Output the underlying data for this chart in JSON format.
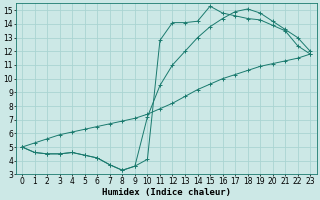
{
  "xlabel": "Humidex (Indice chaleur)",
  "xlim": [
    -0.5,
    23.5
  ],
  "ylim": [
    3,
    15.5
  ],
  "xticks": [
    0,
    1,
    2,
    3,
    4,
    5,
    6,
    7,
    8,
    9,
    10,
    11,
    12,
    13,
    14,
    15,
    16,
    17,
    18,
    19,
    20,
    21,
    22,
    23
  ],
  "yticks": [
    3,
    4,
    5,
    6,
    7,
    8,
    9,
    10,
    11,
    12,
    13,
    14,
    15
  ],
  "bg_color": "#cce8e6",
  "grid_color": "#aad4d2",
  "line_color": "#1a7a6e",
  "line1_x": [
    0,
    1,
    2,
    3,
    4,
    5,
    6,
    7,
    8,
    9,
    10,
    11,
    12,
    13,
    14,
    15,
    16,
    17,
    18,
    19,
    20,
    21,
    22,
    23
  ],
  "line1_y": [
    5.0,
    4.6,
    4.5,
    4.5,
    4.6,
    4.4,
    4.2,
    3.7,
    3.3,
    3.6,
    4.1,
    12.8,
    14.1,
    14.1,
    14.2,
    15.3,
    14.8,
    14.6,
    14.4,
    14.3,
    13.9,
    13.5,
    12.4,
    11.8
  ],
  "line2_x": [
    0,
    1,
    2,
    3,
    4,
    5,
    6,
    7,
    8,
    9,
    10,
    11,
    12,
    13,
    14,
    15,
    16,
    17,
    18,
    19,
    20,
    21,
    22,
    23
  ],
  "line2_y": [
    5.0,
    4.6,
    4.5,
    4.5,
    4.6,
    4.4,
    4.2,
    3.7,
    3.3,
    3.6,
    7.2,
    9.5,
    11.0,
    12.0,
    13.0,
    13.8,
    14.4,
    14.9,
    15.1,
    14.8,
    14.2,
    13.6,
    13.0,
    12.0
  ],
  "line3_x": [
    0,
    1,
    2,
    3,
    4,
    5,
    6,
    7,
    8,
    9,
    10,
    11,
    12,
    13,
    14,
    15,
    16,
    17,
    18,
    19,
    20,
    21,
    22,
    23
  ],
  "line3_y": [
    5.0,
    5.3,
    5.6,
    5.9,
    6.1,
    6.3,
    6.5,
    6.7,
    6.9,
    7.1,
    7.4,
    7.8,
    8.2,
    8.7,
    9.2,
    9.6,
    10.0,
    10.3,
    10.6,
    10.9,
    11.1,
    11.3,
    11.5,
    11.8
  ],
  "font_size": 6.5,
  "tick_font_size": 5.5
}
